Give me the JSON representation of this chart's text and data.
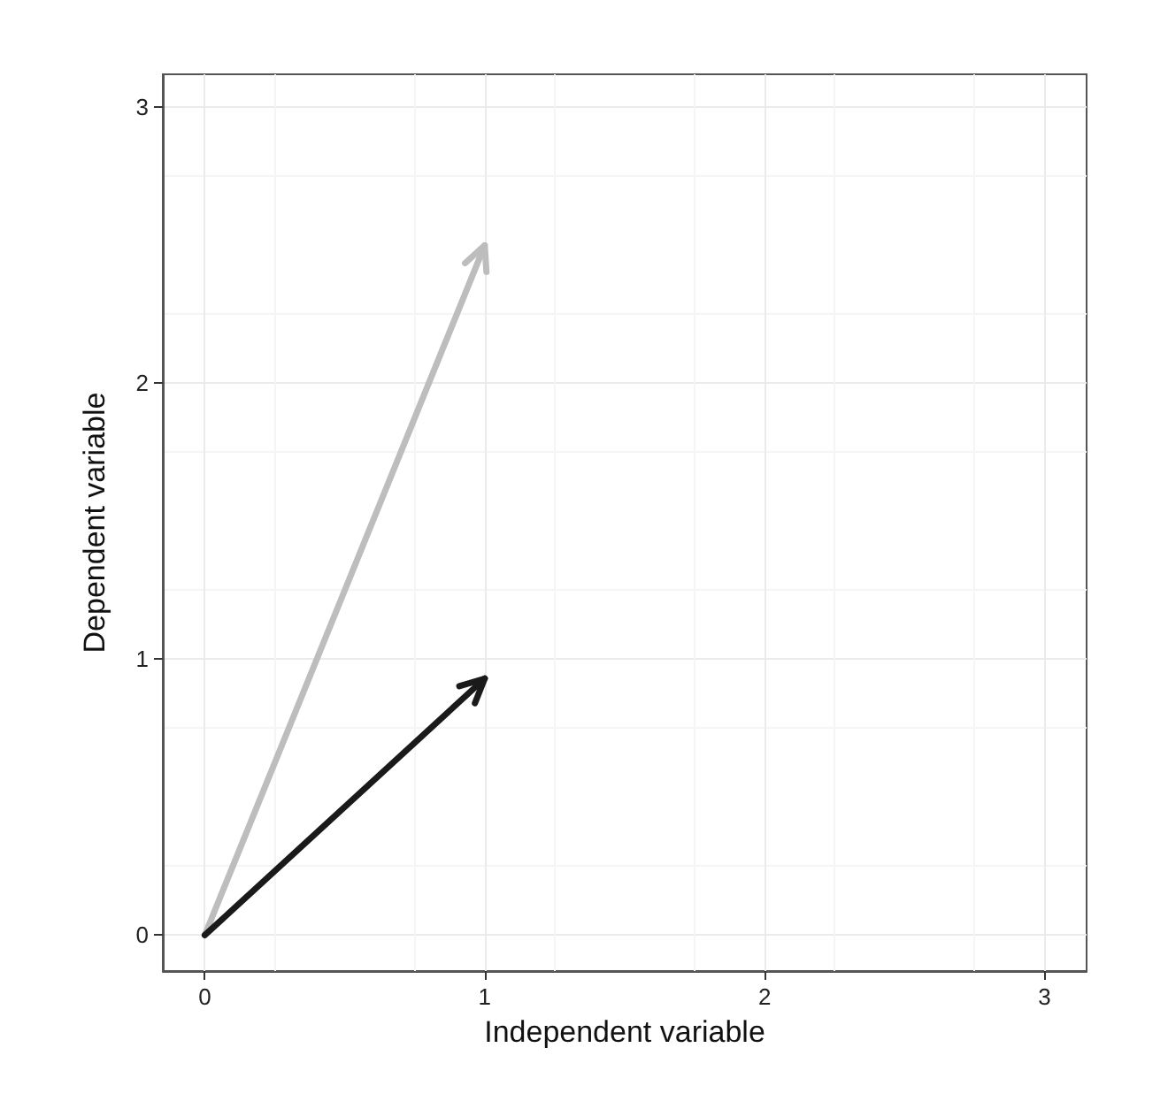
{
  "chart_data": {
    "type": "line",
    "xlabel": "Independent variable",
    "ylabel": "Dependent variable",
    "xlim": [
      -0.15,
      3.15
    ],
    "ylim": [
      -0.13,
      3.12
    ],
    "xticks": [
      0,
      1,
      2,
      3
    ],
    "yticks": [
      0,
      1,
      2,
      3
    ],
    "grid": true,
    "x": [
      0,
      1
    ],
    "series": [
      {
        "color": "#bdbdbd",
        "values": [
          0,
          2.5
        ]
      },
      {
        "color": "#1a1a1a",
        "values": [
          0,
          0.93
        ]
      }
    ]
  }
}
